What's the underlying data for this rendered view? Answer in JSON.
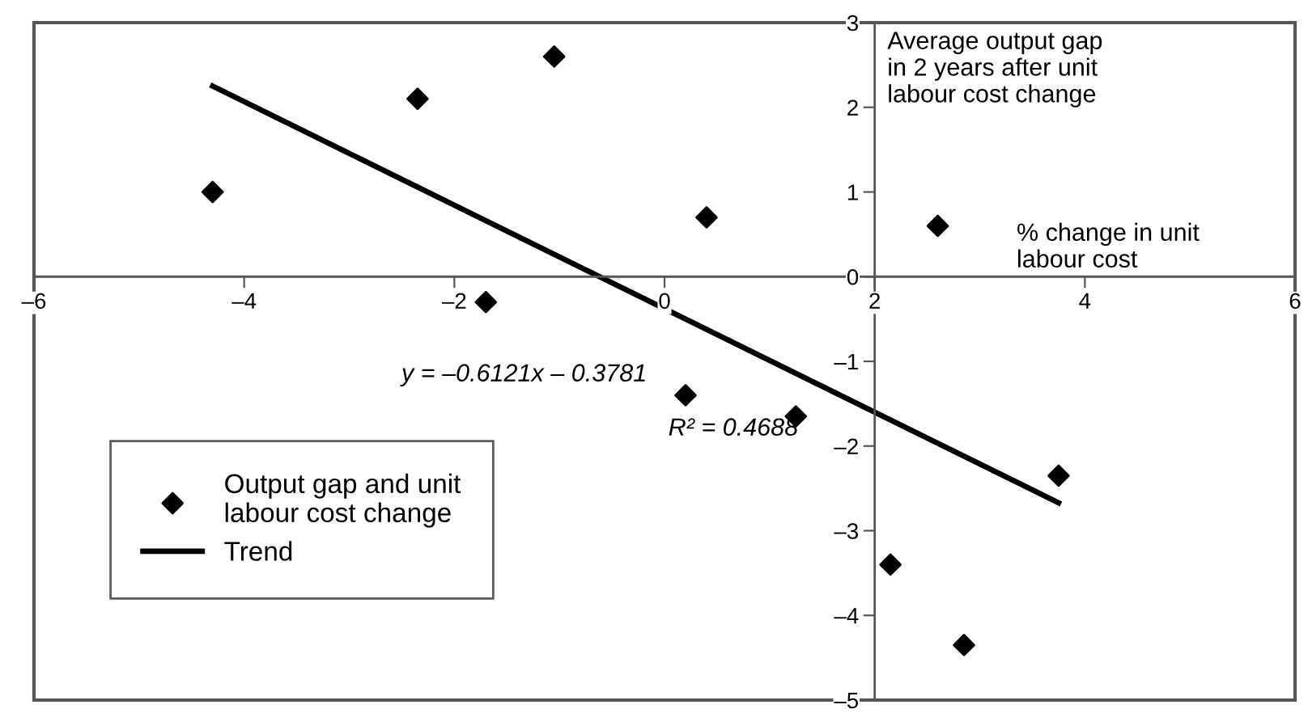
{
  "chart_data": {
    "type": "scatter",
    "xlabel": "% change in unit\nlabour cost",
    "ylabel": "Average output gap\nin 2 years after unit\nlabour cost change",
    "series": [
      {
        "name": "Output gap and unit\nlabour cost change",
        "color": "#000000",
        "marker": "diamond",
        "x": [
          -4.3,
          -2.35,
          -1.05,
          -1.7,
          0.4,
          2.6,
          0.2,
          1.25,
          3.75,
          2.15,
          2.85
        ],
        "values": [
          1.0,
          2.1,
          2.6,
          -0.3,
          0.7,
          0.6,
          -1.4,
          -1.65,
          -2.35,
          -3.4,
          -4.35
        ]
      },
      {
        "name": "Trend",
        "type": "line",
        "color": "#000000",
        "line_style": "solid",
        "x": [
          -4.3,
          3.75
        ],
        "values": [
          2.25,
          -2.67
        ]
      }
    ],
    "annotations": [
      "y = –0.6121x – 0.3781",
      "R² = 0.4688"
    ],
    "xlim": [
      -6,
      6
    ],
    "ylim": [
      -5,
      3
    ],
    "xticks": [
      {
        "value": -6,
        "label": "–6"
      },
      {
        "value": -4,
        "label": "–4"
      },
      {
        "value": -2,
        "label": "–2"
      },
      0,
      2,
      4,
      6
    ],
    "yticks": [
      {
        "value": -5,
        "label": "–5"
      },
      {
        "value": -4,
        "label": "–4"
      },
      {
        "value": -3,
        "label": "–3"
      },
      {
        "value": -2,
        "label": "–2"
      },
      {
        "value": -1,
        "label": "–1"
      },
      0,
      1,
      2,
      3
    ],
    "grid": false,
    "legend": "bottom left"
  }
}
